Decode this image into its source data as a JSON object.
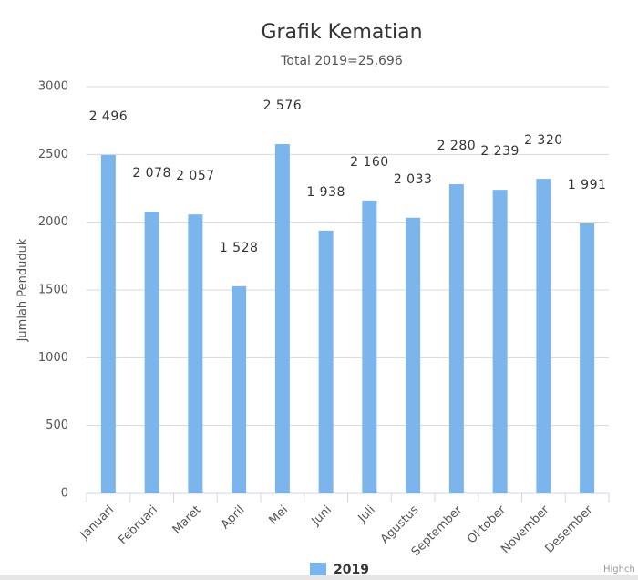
{
  "chart_data": {
    "type": "bar",
    "title": "Grafik Kematian",
    "subtitle": "Total 2019=25,696",
    "y_label": "Jumlah Penduduk",
    "categories": [
      "Januari",
      "Februari",
      "Maret",
      "April",
      "Mei",
      "Juni",
      "Juli",
      "Agustus",
      "September",
      "Oktober",
      "November",
      "Desember"
    ],
    "series": [
      {
        "name": "2019",
        "color": "#7cb5ec",
        "values": [
          2496,
          2078,
          2057,
          1528,
          2576,
          1938,
          2160,
          2033,
          2280,
          2239,
          2320,
          1991
        ],
        "value_labels": [
          "2 496",
          "2 078",
          "2 057",
          "1 528",
          "2 576",
          "1 938",
          "2 160",
          "2 033",
          "2 280",
          "2 239",
          "2 320",
          "1 991"
        ]
      }
    ],
    "ylim": [
      0,
      3000
    ],
    "yticks": [
      0,
      500,
      1000,
      1500,
      2000,
      2500,
      3000
    ],
    "grid": true,
    "legend": "bottom",
    "credits": "Highch"
  }
}
